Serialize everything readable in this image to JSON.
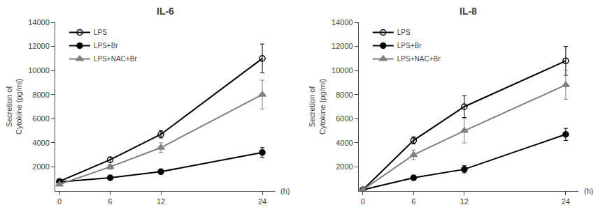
{
  "chart_data": [
    {
      "type": "line",
      "title": "IL-6",
      "x": [
        0,
        6,
        12,
        24
      ],
      "xlabel": "(h)",
      "ylabel": "Secretion of\nCytokine (pg/ml)",
      "xlim": [
        -0.5,
        25.5
      ],
      "xticks": [
        0,
        6,
        12,
        24
      ],
      "ylim": [
        0,
        14000
      ],
      "yticks": [
        2000,
        4000,
        6000,
        8000,
        10000,
        12000,
        14000
      ],
      "grid": false,
      "legend": "upper left",
      "series": [
        {
          "name": "LPS",
          "color": "#000000",
          "marker": "circle-open",
          "values": [
            800,
            2600,
            4700,
            11000
          ],
          "errors": [
            100,
            200,
            300,
            1200
          ]
        },
        {
          "name": "LPS+Br",
          "color": "#000000",
          "marker": "circle",
          "values": [
            750,
            1100,
            1600,
            3200
          ],
          "errors": [
            80,
            100,
            150,
            400
          ]
        },
        {
          "name": "LPS+NAC+Br",
          "color": "#808080",
          "marker": "triangle-up",
          "values": [
            550,
            2000,
            3600,
            8000
          ],
          "errors": [
            80,
            200,
            400,
            1200
          ]
        }
      ]
    },
    {
      "type": "line",
      "title": "IL-8",
      "x": [
        0,
        6,
        12,
        24
      ],
      "xlabel": "(h)",
      "ylabel": "Secretion of\nCytokine (pg/ml)",
      "xlim": [
        -0.5,
        25.5
      ],
      "xticks": [
        0,
        6,
        12,
        24
      ],
      "ylim": [
        0,
        14000
      ],
      "yticks": [
        2000,
        4000,
        6000,
        8000,
        10000,
        12000,
        14000
      ],
      "grid": false,
      "legend": "upper left",
      "series": [
        {
          "name": "LPS",
          "color": "#000000",
          "marker": "circle-open",
          "values": [
            100,
            4200,
            7000,
            10800
          ],
          "errors": [
            50,
            300,
            900,
            1200
          ]
        },
        {
          "name": "LPS+Br",
          "color": "#000000",
          "marker": "circle",
          "values": [
            100,
            1100,
            1800,
            4700
          ],
          "errors": [
            30,
            200,
            300,
            500
          ]
        },
        {
          "name": "LPS+NAC+Br",
          "color": "#808080",
          "marker": "triangle-up",
          "values": [
            100,
            3000,
            5000,
            8800
          ],
          "errors": [
            30,
            400,
            1000,
            1200
          ]
        }
      ]
    }
  ]
}
